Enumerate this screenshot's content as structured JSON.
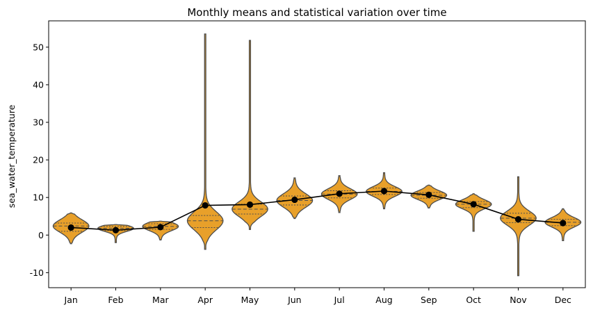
{
  "chart_data": {
    "type": "violin",
    "title": "Monthly means and statistical variation over time",
    "xlabel": "",
    "ylabel": "sea_water_temperature",
    "ylim": [
      -14,
      57
    ],
    "yticks": [
      -10,
      0,
      10,
      20,
      30,
      40,
      50
    ],
    "categories": [
      "Jan",
      "Feb",
      "Mar",
      "Apr",
      "May",
      "Jun",
      "Jul",
      "Aug",
      "Sep",
      "Oct",
      "Nov",
      "Dec"
    ],
    "means": [
      2.0,
      1.3,
      2.1,
      7.9,
      8.1,
      9.4,
      11.0,
      11.7,
      10.7,
      8.2,
      4.2,
      3.2
    ],
    "violins": [
      {
        "min": -2.3,
        "max": 5.9,
        "q1": 1.0,
        "median": 2.4,
        "q3": 3.2
      },
      {
        "min": -2.0,
        "max": 2.8,
        "q1": 1.2,
        "median": 1.8,
        "q3": 2.3
      },
      {
        "min": -1.3,
        "max": 3.7,
        "q1": 1.5,
        "median": 2.3,
        "q3": 3.0
      },
      {
        "min": -3.8,
        "max": 53.5,
        "q1": 2.0,
        "median": 3.8,
        "q3": 5.2
      },
      {
        "min": 1.5,
        "max": 51.8,
        "q1": 5.6,
        "median": 6.9,
        "q3": 8.2
      },
      {
        "min": 4.4,
        "max": 15.2,
        "q1": 8.0,
        "median": 9.2,
        "q3": 10.4
      },
      {
        "min": 6.0,
        "max": 15.8,
        "q1": 9.9,
        "median": 10.9,
        "q3": 11.8
      },
      {
        "min": 7.0,
        "max": 16.6,
        "q1": 10.8,
        "median": 11.6,
        "q3": 12.5
      },
      {
        "min": 7.2,
        "max": 13.3,
        "q1": 9.8,
        "median": 10.6,
        "q3": 11.3
      },
      {
        "min": 1.0,
        "max": 11.0,
        "q1": 7.3,
        "median": 8.2,
        "q3": 8.9
      },
      {
        "min": -10.8,
        "max": 15.5,
        "q1": 3.3,
        "median": 4.5,
        "q3": 5.8
      },
      {
        "min": -1.5,
        "max": 7.0,
        "q1": 2.5,
        "median": 3.4,
        "q3": 4.2
      }
    ],
    "colors": {
      "violin_fill": "#e8a02a",
      "violin_edge": "#4d4d4d",
      "mean_line": "#000000",
      "mean_marker": "#000000"
    },
    "legend": "none",
    "grid": false
  }
}
